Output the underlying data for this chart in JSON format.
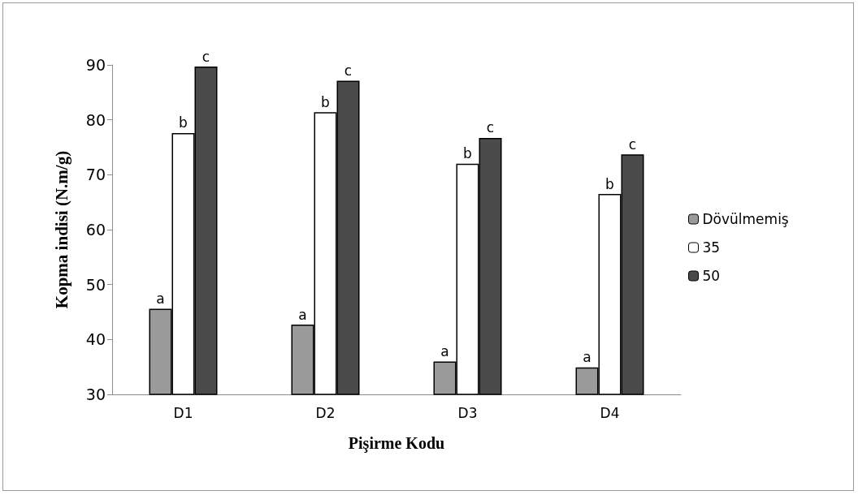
{
  "chart_data": {
    "type": "bar",
    "xlabel": "Pişirme Kodu",
    "ylabel": "Kopma indisi (N.m/g)",
    "categories": [
      "D1",
      "D2",
      "D3",
      "D4"
    ],
    "series": [
      {
        "name": "Dövülmemiş",
        "color": "#9a9a9a",
        "values": [
          45.6,
          42.7,
          36.0,
          34.9
        ],
        "value_labels": [
          "a",
          "a",
          "a",
          "a"
        ]
      },
      {
        "name": "35",
        "color": "#ffffff",
        "values": [
          77.6,
          81.4,
          72.0,
          66.5
        ],
        "value_labels": [
          "b",
          "b",
          "b",
          "b"
        ]
      },
      {
        "name": "50",
        "color": "#4a4a4a",
        "values": [
          89.7,
          87.1,
          76.7,
          73.7
        ],
        "value_labels": [
          "c",
          "c",
          "c",
          "c"
        ]
      }
    ],
    "ylim": [
      30,
      90
    ],
    "yticks": [
      30,
      40,
      50,
      60,
      70,
      80,
      90
    ],
    "grid": false,
    "legend": "right"
  }
}
